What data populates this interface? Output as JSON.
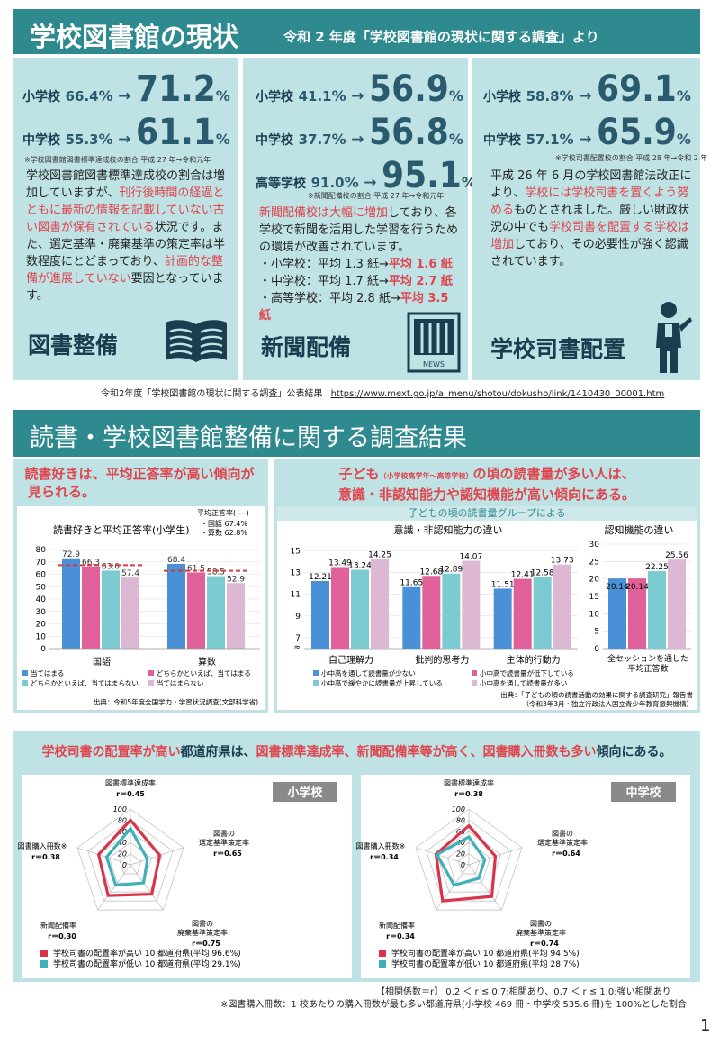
{
  "header": {
    "title": "学校図書館の現状",
    "subtitle": "令和 2 年度「学校図書館の現状に関する調査」より"
  },
  "panel1": {
    "rows": [
      {
        "label": "小学校",
        "old": "66.4",
        "new": "71.2"
      },
      {
        "label": "中学校",
        "old": "55.3",
        "new": "61.1"
      }
    ],
    "note": "※学校図書館図書標準達成校の割合 平成 27 年→令和元年",
    "body": [
      {
        "t": "学校図書館図書標準達成校の割合は増加していますが、",
        "red": false
      },
      {
        "t": "刊行後時間の経過とともに最新の情報を記載していない古い図書が保有されている",
        "red": true
      },
      {
        "t": "状況です。また、選定基準・廃棄基準の策定率は半数程度にとどまっており、",
        "red": false
      },
      {
        "t": "計画的な整備が進展していない",
        "red": true
      },
      {
        "t": "要因となっています。",
        "red": false
      }
    ],
    "label": "図書整備"
  },
  "panel2": {
    "rows": [
      {
        "label": "小学校",
        "old": "41.1",
        "new": "56.9"
      },
      {
        "label": "中学校",
        "old": "37.7",
        "new": "56.8"
      },
      {
        "label": "高等学校",
        "old": "91.0",
        "new": "95.1"
      }
    ],
    "note": "※新聞配備校の割合 平成 27 年→令和元年",
    "body": [
      {
        "t": "新聞配備校は大幅に増加",
        "red": true
      },
      {
        "t": "しており、各学校で新聞を活用した学習を行うための環境が改善されています。",
        "red": false
      }
    ],
    "list": [
      {
        "pre": "・小学校：平均 1.3 紙→",
        "post": "平均 1.6 紙"
      },
      {
        "pre": "・中学校：平均 1.7 紙→",
        "post": "平均 2.7 紙"
      },
      {
        "pre": "・高等学校：平均 2.8 紙→",
        "post": "平均 3.5 紙"
      }
    ],
    "label": "新聞配備",
    "news": "NEWS"
  },
  "panel3": {
    "rows": [
      {
        "label": "小学校",
        "old": "58.8",
        "new": "69.1"
      },
      {
        "label": "中学校",
        "old": "57.1",
        "new": "65.9"
      }
    ],
    "note": "※学校司書配置校の割合 平成 28 年→令和 2 年",
    "body": [
      {
        "t": "平成 26 年 6 月の学校図書館法改正により、",
        "red": false
      },
      {
        "t": "学校には学校司書を置くよう努める",
        "red": true
      },
      {
        "t": "ものとされました。厳しい財政状況の中でも",
        "red": false
      },
      {
        "t": "学校司書を配置する学校は増加",
        "red": true
      },
      {
        "t": "しており、その必要性が強く認識されています。",
        "red": false
      }
    ],
    "label": "学校司書配置"
  },
  "units": {
    "pct": "%",
    "arrow": "→"
  },
  "source1": "令和2年度「学校図書館の現状に関する調査」公表結果",
  "source1_url": "https://www.mext.go.jp/a_menu/shotou/dokusho/link/1410430_00001.htm",
  "title2": "読書・学校図書館整備に関する調査結果",
  "sec_left_head": [
    "読書好きは、平均正答率が高い傾向が",
    "見られる。"
  ],
  "sec_right_head": {
    "l1a": "子ども",
    "l1small": "（小学校高学年～高等学校）",
    "l1b": "の頃の読書量が多い人は、",
    "l2": "意識・非認知能力や認知機能が高い傾向にある。"
  },
  "groups_title": "子どもの頃の読書量グループによる",
  "chart_data": [
    {
      "type": "bar",
      "title": "読書好きと平均正答率(小学生)",
      "categories": [
        "国語",
        "算数"
      ],
      "series": [
        {
          "name": "当てはまる",
          "values": [
            72.9,
            68.4
          ],
          "color": "#4a90d6"
        },
        {
          "name": "どちらかといえば、当てはまる",
          "values": [
            66.3,
            61.5
          ],
          "color": "#e0609a"
        },
        {
          "name": "どちらかといえば、当てはまらない",
          "values": [
            63.0,
            58.5
          ],
          "color": "#7ccbd1"
        },
        {
          "name": "当てはまらない",
          "values": [
            57.4,
            52.9
          ],
          "color": "#dcb8d4"
        }
      ],
      "average": {
        "label": "平均正答率(----)",
        "items": [
          "・国語 67.4%",
          "・算数 62.8%"
        ],
        "values": [
          67.4,
          62.8
        ],
        "color": "#d83a3a"
      },
      "yticks": [
        0,
        10,
        20,
        30,
        40,
        50,
        60,
        70,
        80
      ],
      "ylim": [
        0,
        80
      ],
      "source": "出典：令和5年度全国学力・学習状況調査(文部科学省)"
    },
    {
      "type": "bar",
      "title": "意識・非認知能力の違い",
      "categories": [
        "自己理解力",
        "批判的思考力",
        "主体的行動力"
      ],
      "series": [
        {
          "name": "小中高を通して読書量が少ない",
          "values": [
            12.21,
            11.65,
            11.51
          ],
          "color": "#4a90d6"
        },
        {
          "name": "小中高で読書量が低下している",
          "values": [
            13.49,
            12.68,
            12.41
          ],
          "color": "#e0609a"
        },
        {
          "name": "小中高で緩やかに読書量が上昇している",
          "values": [
            13.24,
            12.89,
            12.58
          ],
          "color": "#7ccbd1"
        },
        {
          "name": "小中高を通して読書量が多い",
          "values": [
            14.25,
            14.07,
            13.73
          ],
          "color": "#dcb8d4"
        }
      ],
      "yticks": [
        7,
        9,
        11,
        13,
        15
      ],
      "ylim": [
        6,
        15.6
      ]
    },
    {
      "type": "bar",
      "title": "認知機能の違い",
      "categories": [
        "全セッションを通した平均正答数"
      ],
      "category_lines": [
        "全セッションを通した",
        "平均正答数"
      ],
      "series": [
        {
          "name": "小中高を通して読書量が少ない",
          "values": [
            20.14
          ],
          "color": "#4a90d6"
        },
        {
          "name": "小中高で読書量が低下している",
          "values": [
            20.14
          ],
          "color": "#e0609a"
        },
        {
          "name": "小中高で緩やかに読書量が上昇している",
          "values": [
            22.25
          ],
          "color": "#7ccbd1"
        },
        {
          "name": "小中高を通して読書量が多い",
          "values": [
            25.56
          ],
          "color": "#dcb8d4"
        }
      ],
      "yticks": [
        0,
        5,
        10,
        15,
        20,
        25,
        30
      ],
      "ylim": [
        0,
        30
      ],
      "source": [
        "出典：「子どもの頃の読書活動の効果に関する調査研究」報告書",
        "（令和3年3月・独立行政法人国立青少年教育振興機構）"
      ]
    },
    {
      "type": "radar",
      "title": "小学校",
      "axes": [
        {
          "lines": [
            "図書標準達成率"
          ],
          "r": "r＝0.45"
        },
        {
          "lines": [
            "図書の",
            "選定基準策定率"
          ],
          "r": "r＝0.65"
        },
        {
          "lines": [
            "図書の",
            "廃棄基準策定率"
          ],
          "r": "r＝0.75"
        },
        {
          "lines": [
            "新聞配備率"
          ],
          "r": "r＝0.30"
        },
        {
          "lines": [
            "図書購入冊数※"
          ],
          "r": "r＝0.38"
        }
      ],
      "rticks": [
        0,
        20,
        40,
        60,
        80,
        100
      ],
      "series": [
        {
          "name": "学校司書の配置率が高い 10 都道府県(平均 96.6%)",
          "values": [
            80,
            55,
            65,
            68,
            60
          ],
          "color": "#d9344a"
        },
        {
          "name": "学校司書の配置率が低い 10 都道府県(平均 29.1%)",
          "values": [
            65,
            32,
            40,
            45,
            45
          ],
          "color": "#3fb0b8"
        }
      ]
    },
    {
      "type": "radar",
      "title": "中学校",
      "axes": [
        {
          "lines": [
            "図書標準達成率"
          ],
          "r": "r＝0.38"
        },
        {
          "lines": [
            "図書の",
            "選定基準策定率"
          ],
          "r": "r＝0.64"
        },
        {
          "lines": [
            "図書の",
            "廃棄基準策定率"
          ],
          "r": "r＝0.74"
        },
        {
          "lines": [
            "新聞配備率"
          ],
          "r": "r＝0.34"
        },
        {
          "lines": [
            "図書購入冊数※"
          ],
          "r": "r＝0.34"
        }
      ],
      "rticks": [
        0,
        20,
        40,
        60,
        80,
        100
      ],
      "series": [
        {
          "name": "学校司書の配置率が高い 10 都道府県(平均 94.5%)",
          "values": [
            70,
            50,
            70,
            80,
            62
          ],
          "color": "#d9344a"
        },
        {
          "name": "学校司書の配置率が低い 10 都道府県(平均 28.7%)",
          "values": [
            50,
            30,
            30,
            45,
            60
          ],
          "color": "#3fb0b8"
        }
      ]
    }
  ],
  "sec3_head": {
    "a": "学校司書の配置率が高い",
    "b": "都道府県は、",
    "c": "図書標準達成率、新聞配備率等が高く、図書購入冊数も多い",
    "d": "傾向にある。"
  },
  "footer1": "【相関係数＝r】 0.2 ＜ r ≦ 0.7:相関あり、0.7 ＜ r ≦ 1.0:強い相関あり",
  "footer2": "※図書購入冊数：1 校あたりの購入冊数が最も多い都道府県(小学校 469 冊・中学校 535.6 冊)を 100%とした割合",
  "page_number": "1"
}
